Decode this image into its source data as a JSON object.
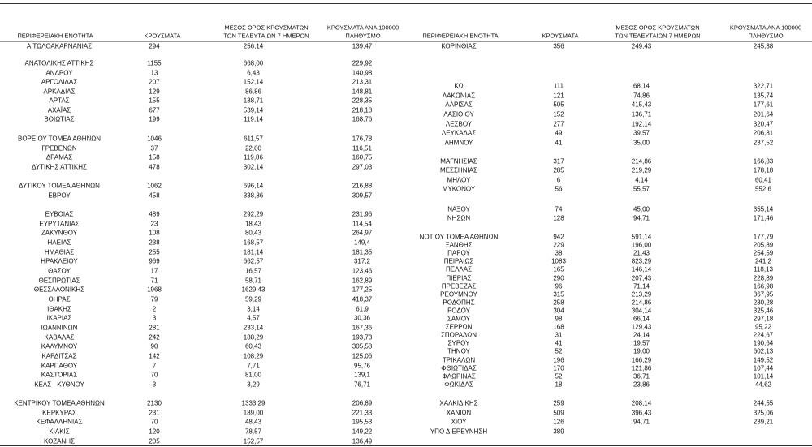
{
  "tables": [
    {
      "header": [
        [
          "ΠΕΡΙΦΕΡΕΙΑΚΗ ΕΝΟΤΗΤΑ"
        ],
        [
          "ΚΡΟΥΣΜΑΤΑ"
        ],
        [
          "ΜΕΣΟΣ ΟΡΟΣ ΚΡΟΥΣΜΑΤΩΝ",
          "ΤΩΝ ΤΕΛΕΥΤΑΙΩΝ 7 ΗΜΕΡΩΝ"
        ],
        [
          "ΚΡΟΥΣΜΑΤΑ ΑΝΑ 100000",
          "ΠΛΗΘΥΣΜΟ"
        ]
      ],
      "groups": [
        [
          [
            "ΑΙΤΩΛΟΑΚΑΡΝΑΝΙΑΣ",
            294,
            "256,14",
            "139,47"
          ]
        ],
        [
          [
            "ΑΝΑΤΟΛΙΚΗΣ ΑΤΤΙΚΗΣ",
            1155,
            "668,00",
            "229,92"
          ],
          [
            "ΑΝΔΡΟΥ",
            13,
            "6,43",
            "140,98"
          ],
          [
            "ΑΡΓΟΛΙΔΑΣ",
            207,
            "152,14",
            "213,31"
          ],
          [
            "ΑΡΚΑΔΙΑΣ",
            129,
            "86,86",
            "148,81"
          ],
          [
            "ΑΡΤΑΣ",
            155,
            "138,71",
            "228,35"
          ],
          [
            "ΑΧΑΪΑΣ",
            677,
            "539,14",
            "218,18"
          ],
          [
            "ΒΟΙΩΤΙΑΣ",
            199,
            "119,14",
            "168,76"
          ]
        ],
        [
          [
            "ΒΟΡΕΙΟΥ ΤΟΜΕΑ ΑΘΗΝΩΝ",
            1046,
            "611,57",
            "176,78"
          ],
          [
            "ΓΡΕΒΕΝΩΝ",
            37,
            "22,00",
            "116,51"
          ],
          [
            "ΔΡΑΜΑΣ",
            158,
            "119,86",
            "160,75"
          ],
          [
            "ΔΥΤΙΚΗΣ ΑΤΤΙΚΗΣ",
            478,
            "302,14",
            "297,03"
          ]
        ],
        [
          [
            "ΔΥΤΙΚΟΥ ΤΟΜΕΑ ΑΘΗΝΩΝ",
            1062,
            "696,14",
            "216,88"
          ],
          [
            "ΕΒΡΟΥ",
            458,
            "338,86",
            "309,57"
          ]
        ],
        [
          [
            "ΕΥΒΟΙΑΣ",
            489,
            "292,29",
            "231,96"
          ],
          [
            "ΕΥΡΥΤΑΝΙΑΣ",
            23,
            "18,43",
            "114,54"
          ],
          [
            "ΖΑΚΥΝΘΟΥ",
            108,
            "80,43",
            "264,97"
          ],
          [
            "ΗΛΕΙΑΣ",
            238,
            "168,57",
            "149,4"
          ],
          [
            "ΗΜΑΘΙΑΣ",
            255,
            "181,14",
            "181,35"
          ],
          [
            "ΗΡΑΚΛΕΙΟΥ",
            969,
            "662,57",
            "317,2"
          ],
          [
            "ΘΑΣΟΥ",
            17,
            "16,57",
            "123,46"
          ],
          [
            "ΘΕΣΠΡΩΤΙΑΣ",
            71,
            "58,71",
            "162,89"
          ],
          [
            "ΘΕΣΣΑΛΟΝΙΚΗΣ",
            1968,
            "1629,43",
            "177,25"
          ],
          [
            "ΘΗΡΑΣ",
            79,
            "59,29",
            "418,37"
          ],
          [
            "ΙΘΑΚΗΣ",
            2,
            "3,14",
            "61,9"
          ],
          [
            "ΙΚΑΡΙΑΣ",
            3,
            "4,57",
            "30,36"
          ],
          [
            "ΙΩΑΝΝΙΝΩΝ",
            281,
            "233,14",
            "167,36"
          ],
          [
            "ΚΑΒΑΛΑΣ",
            242,
            "188,29",
            "193,73"
          ],
          [
            "ΚΑΛΥΜΝΟΥ",
            90,
            "60,43",
            "305,58"
          ],
          [
            "ΚΑΡΔΙΤΣΑΣ",
            142,
            "108,29",
            "125,06"
          ],
          [
            "ΚΑΡΠΑΘΟΥ",
            7,
            "7,71",
            "95,76"
          ],
          [
            "ΚΑΣΤΟΡΙΑΣ",
            70,
            "81,00",
            "139,1"
          ],
          [
            "ΚΕΑΣ - ΚΥΘΝΟΥ",
            3,
            "3,29",
            "76,71"
          ]
        ],
        [
          [
            "ΚΕΝΤΡΙΚΟΥ ΤΟΜΕΑ ΑΘΗΝΩΝ",
            2130,
            "1333,29",
            "206,89"
          ],
          [
            "ΚΕΡΚΥΡΑΣ",
            231,
            "189,00",
            "221,33"
          ],
          [
            "ΚΕΦΑΛΛΗΝΙΑΣ",
            70,
            "48,43",
            "195,53"
          ],
          [
            "ΚΙΛΚΙΣ",
            120,
            "78,57",
            "149,22"
          ],
          [
            "ΚΟΖΑΝΗΣ",
            205,
            "152,57",
            "136,49"
          ]
        ]
      ]
    },
    {
      "header": [
        [
          "ΠΕΡΙΦΕΡΕΙΑΚΗ ΕΝΟΤΗΤΑ"
        ],
        [
          "ΚΡΟΥΣΜΑΤΑ"
        ],
        [
          "ΜΕΣΟΣ ΟΡΟΣ ΚΡΟΥΣΜΑΤΩΝ",
          "ΤΩΝ ΤΕΛΕΥΤΑΙΩΝ 7 ΗΜΕΡΩΝ"
        ],
        [
          "ΚΡΟΥΣΜΑΤΑ ΑΝΑ 100000",
          "ΠΛΗΘΥΣΜΟ"
        ]
      ],
      "groups": [
        [
          [
            "ΚΟΡΙΝΘΙΑΣ",
            356,
            "249,43",
            "245,38"
          ]
        ],
        [
          [
            "ΚΩ",
            111,
            "68,14",
            "322,71"
          ],
          [
            "ΛΑΚΩΝΙΑΣ",
            121,
            "74,86",
            "135,74"
          ],
          [
            "ΛΑΡΙΣΑΣ",
            505,
            "415,43",
            "177,61"
          ],
          [
            "ΛΑΣΙΘΙΟΥ",
            152,
            "136,71",
            "201,64"
          ],
          [
            "ΛΕΣΒΟΥ",
            277,
            "192,14",
            "320,47"
          ],
          [
            "ΛΕΥΚΑΔΑΣ",
            49,
            "39,57",
            "206,81"
          ],
          [
            "ΛΗΜΝΟΥ",
            41,
            "35,00",
            "237,52"
          ]
        ],
        [
          [
            "ΜΑΓΝΗΣΙΑΣ",
            317,
            "214,86",
            "166,83"
          ],
          [
            "ΜΕΣΣΗΝΙΑΣ",
            285,
            "219,29",
            "178,18"
          ],
          [
            "ΜΗΛΟΥ",
            6,
            "4,14",
            "60,41"
          ],
          [
            "ΜΥΚΟΝΟΥ",
            56,
            "55,57",
            "552,6"
          ]
        ],
        [
          [
            "ΝΑΞΟΥ",
            74,
            "45,00",
            "355,14"
          ],
          [
            "ΝΗΣΩΝ",
            128,
            "94,71",
            "171,46"
          ]
        ],
        [
          [
            "ΝΟΤΙΟΥ ΤΟΜΕΑ ΑΘΗΝΩΝ",
            942,
            "591,14",
            "177,79"
          ],
          [
            "ΞΑΝΘΗΣ",
            229,
            "196,00",
            "205,89"
          ],
          [
            "ΠΑΡΟΥ",
            38,
            "21,43",
            "254,59"
          ],
          [
            "ΠΕΙΡΑΙΩΣ",
            1083,
            "823,29",
            "241,2"
          ],
          [
            "ΠΕΛΛΑΣ",
            165,
            "146,14",
            "118,13"
          ],
          [
            "ΠΙΕΡΙΑΣ",
            290,
            "207,43",
            "228,89"
          ],
          [
            "ΠΡΕΒΕΖΑΣ",
            96,
            "71,14",
            "166,98"
          ],
          [
            "ΡΕΘΥΜΝΟΥ",
            315,
            "213,29",
            "367,95"
          ],
          [
            "ΡΟΔΟΠΗΣ",
            258,
            "214,86",
            "230,28"
          ],
          [
            "ΡΟΔΟΥ",
            304,
            "304,14",
            "325,46"
          ],
          [
            "ΣΑΜΟΥ",
            98,
            "66,14",
            "297,18"
          ],
          [
            "ΣΕΡΡΩΝ",
            168,
            "129,43",
            "95,22"
          ],
          [
            "ΣΠΟΡΑΔΩΝ",
            31,
            "24,14",
            "224,67"
          ],
          [
            "ΣΥΡΟΥ",
            41,
            "19,57",
            "190,64"
          ],
          [
            "ΤΗΝΟΥ",
            52,
            "19,00",
            "602,13"
          ],
          [
            "ΤΡΙΚΑΛΩΝ",
            196,
            "166,29",
            "149,52"
          ],
          [
            "ΦΘΙΩΤΙΔΑΣ",
            170,
            "121,86",
            "107,44"
          ],
          [
            "ΦΛΩΡΙΝΑΣ",
            52,
            "36,71",
            "101,14"
          ],
          [
            "ΦΩΚΙΔΑΣ",
            18,
            "23,86",
            "44,62"
          ]
        ],
        [
          [
            "ΧΑΛΚΙΔΙΚΗΣ",
            259,
            "208,14",
            "244,55"
          ],
          [
            "ΧΑΝΙΩΝ",
            509,
            "396,43",
            "325,06"
          ],
          [
            "ΧΙΟΥ",
            126,
            "94,71",
            "239,21"
          ],
          [
            "ΥΠΟ ΔΙΕΡΕΥΝΗΣΗ",
            389
          ]
        ]
      ]
    }
  ]
}
